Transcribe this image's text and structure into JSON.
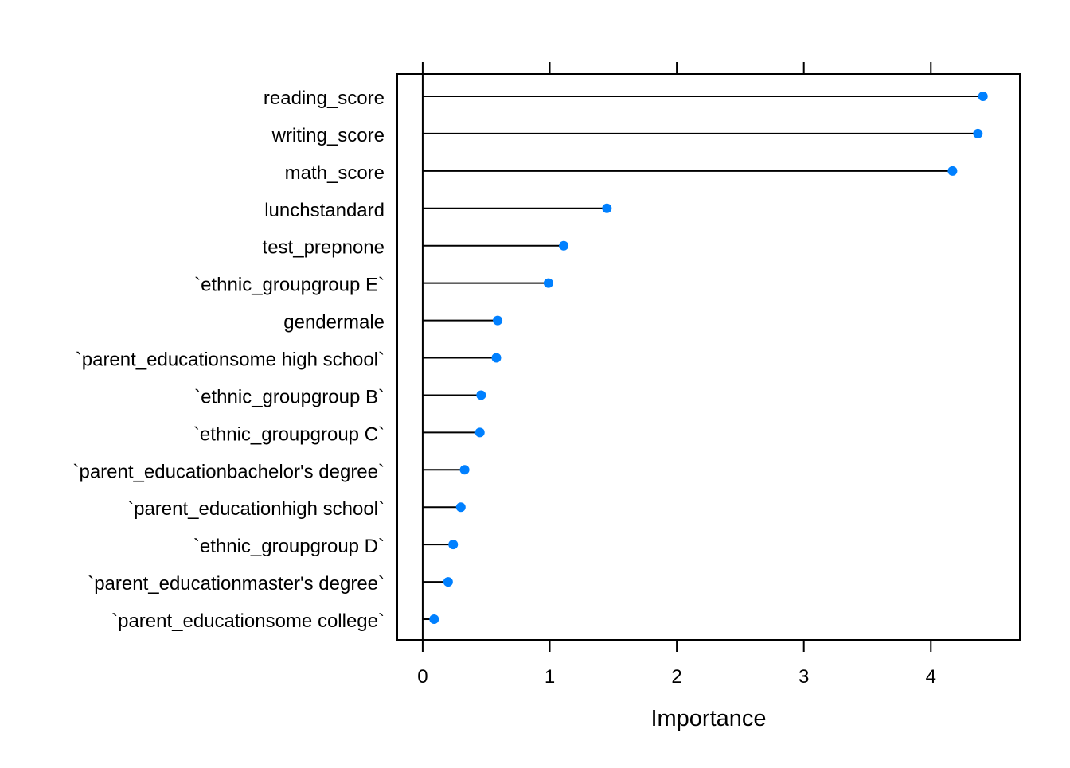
{
  "chart_data": {
    "type": "dot",
    "title": "",
    "xlabel": "Importance",
    "ylabel": "",
    "xlim": [
      -0.2,
      4.7
    ],
    "xticks": [
      0,
      1,
      2,
      3,
      4
    ],
    "xtick_labels": [
      "0",
      "1",
      "2",
      "3",
      "4"
    ],
    "grid": false,
    "legend": "none",
    "point_color": "#0080FF",
    "segment_color": "#000000",
    "categories": [
      "reading_score",
      "writing_score",
      "math_score",
      "lunchstandard",
      "test_prepnone",
      "`ethnic_groupgroup E`",
      "gendermale",
      "`parent_educationsome high school`",
      "`ethnic_groupgroup B`",
      "`ethnic_groupgroup C`",
      "`parent_educationbachelor's degree`",
      "`parent_educationhigh school`",
      "`ethnic_groupgroup D`",
      "`parent_educationmaster's degree`",
      "`parent_educationsome college`"
    ],
    "values": [
      4.41,
      4.37,
      4.17,
      1.45,
      1.11,
      0.99,
      0.59,
      0.58,
      0.46,
      0.45,
      0.33,
      0.3,
      0.24,
      0.2,
      0.09
    ]
  }
}
